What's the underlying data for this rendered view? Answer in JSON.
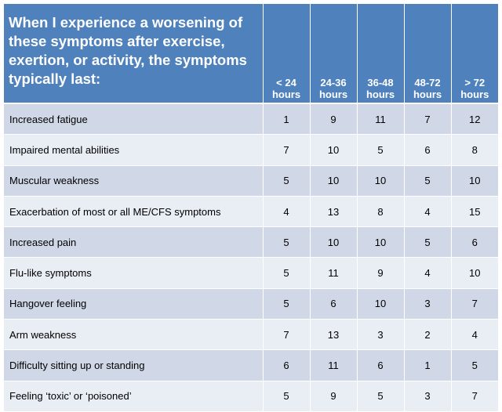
{
  "header": {
    "title": "When I experience a worsening of these symptoms after exercise, exertion, or activity, the symptoms typically last:",
    "buckets": [
      {
        "top": "< 24",
        "bottom": "hours"
      },
      {
        "top": "24-36",
        "bottom": "hours"
      },
      {
        "top": "36-48",
        "bottom": "hours"
      },
      {
        "top": "48-72",
        "bottom": "hours"
      },
      {
        "top": "> 72",
        "bottom": "hours"
      }
    ]
  },
  "rows": [
    {
      "symptom": "Increased fatigue",
      "values": [
        "1",
        "9",
        "11",
        "7",
        "12"
      ]
    },
    {
      "symptom": "Impaired mental abilities",
      "values": [
        "7",
        "10",
        "5",
        "6",
        "8"
      ]
    },
    {
      "symptom": "Muscular weakness",
      "values": [
        "5",
        "10",
        "10",
        "5",
        "10"
      ]
    },
    {
      "symptom": "Exacerbation of most or all ME/CFS symptoms",
      "values": [
        "4",
        "13",
        "8",
        "4",
        "15"
      ]
    },
    {
      "symptom": "Increased pain",
      "values": [
        "5",
        "10",
        "10",
        "5",
        "6"
      ]
    },
    {
      "symptom": "Flu-like symptoms",
      "values": [
        "5",
        "11",
        "9",
        "4",
        "10"
      ]
    },
    {
      "symptom": "Hangover feeling",
      "values": [
        "5",
        "6",
        "10",
        "3",
        "7"
      ]
    },
    {
      "symptom": "Arm weakness",
      "values": [
        "7",
        "13",
        "3",
        "2",
        "4"
      ]
    },
    {
      "symptom": "Difficulty sitting up or standing",
      "values": [
        "6",
        "11",
        "6",
        "1",
        "5"
      ]
    },
    {
      "symptom": "Feeling ‘toxic’ or ‘poisoned’",
      "values": [
        "5",
        "9",
        "5",
        "3",
        "7"
      ]
    }
  ],
  "colors": {
    "header_bg": "#4f81bd",
    "row_dark": "#d0d8e8",
    "row_light": "#e9edf4"
  }
}
